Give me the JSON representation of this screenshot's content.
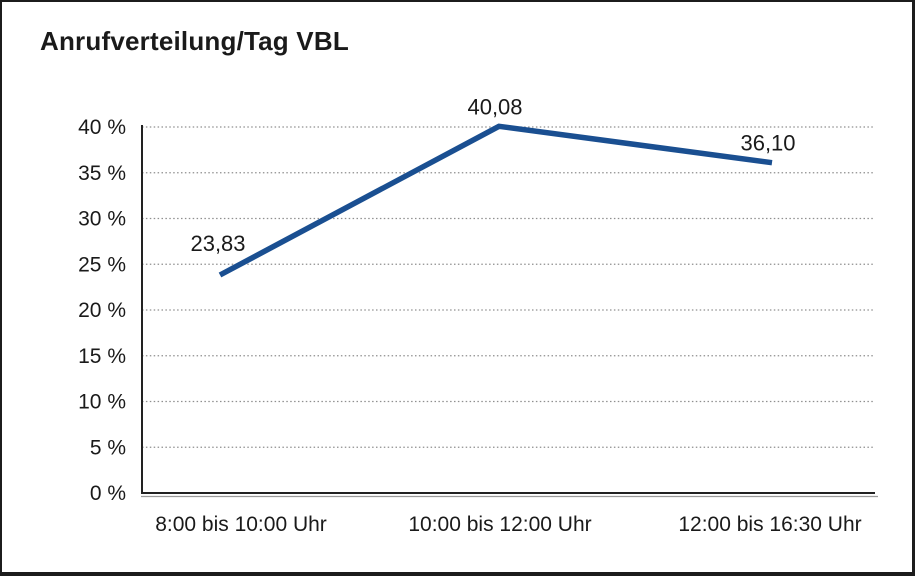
{
  "chart_data": {
    "type": "line",
    "title": "Anrufverteilung/Tag VBL",
    "categories": [
      "8:00 bis 10:00 Uhr",
      "10:00 bis 12:00 Uhr",
      "12:00 bis 16:30 Uhr"
    ],
    "values": [
      23.83,
      40.08,
      36.1
    ],
    "point_labels": [
      "23,83",
      "40,08",
      "36,10"
    ],
    "y_ticks": [
      0,
      5,
      10,
      15,
      20,
      25,
      30,
      35,
      40
    ],
    "y_tick_labels": [
      "0 %",
      "5 %",
      "10 %",
      "15 %",
      "20 %",
      "25 %",
      "30 %",
      "35 %",
      "40 %"
    ],
    "ylim": [
      0,
      40
    ],
    "xlabel": "",
    "ylabel": "",
    "legend": "none",
    "grid": "horizontal-dotted",
    "colors": {
      "line": "#1A4F91",
      "grid": "#8f8f8f",
      "axis": "#222222",
      "axis_shadow": "#9a9a9a",
      "text": "#1a1a1a",
      "background": "#ffffff",
      "border": "#1c1c1c"
    }
  }
}
